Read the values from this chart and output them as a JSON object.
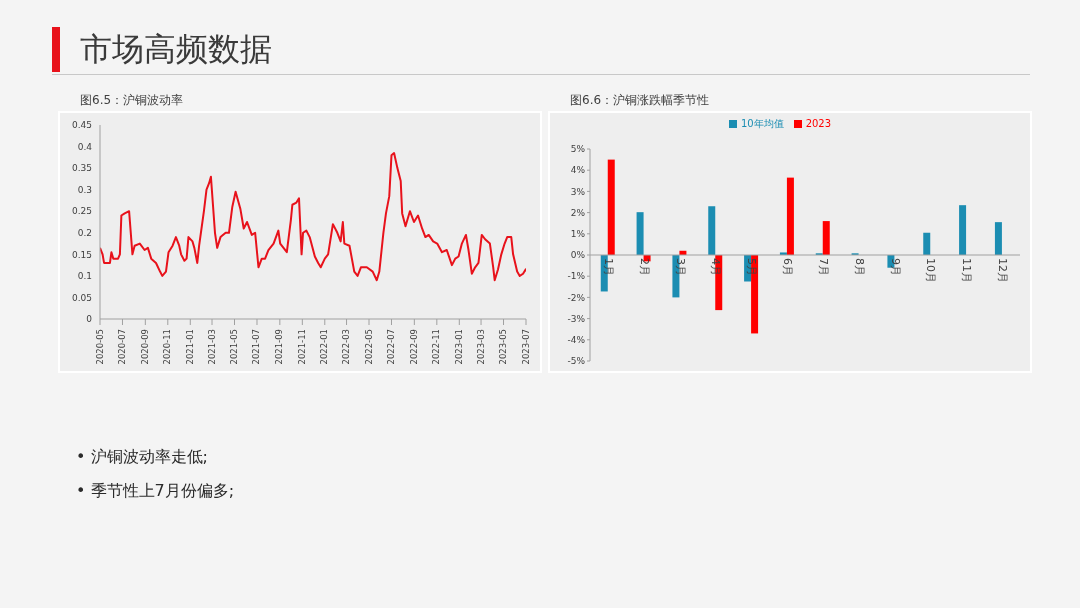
{
  "chart_data": [
    {
      "type": "other",
      "title": "市场高频数据",
      "annotations": [
        "• 沪铜波动率走低;",
        "• 季节性上7月份偏多;"
      ]
    },
    {
      "type": "line",
      "title": "图6.5：沪铜波动率",
      "xlim": [
        "2020-05",
        "2023-07"
      ],
      "xticks": [
        "2020-05",
        "2020-07",
        "2020-09",
        "2020-11",
        "2021-01",
        "2021-03",
        "2021-05",
        "2021-07",
        "2021-09",
        "2021-11",
        "2022-01",
        "2022-03",
        "2022-05",
        "2022-07",
        "2022-09",
        "2022-11",
        "2023-01",
        "2023-03",
        "2023-05",
        "2023-07"
      ],
      "ylim": [
        0,
        0.45
      ],
      "yticks": [
        0,
        0.05,
        0.1,
        0.15,
        0.2,
        0.25,
        0.3,
        0.35,
        0.4,
        0.45
      ],
      "grid": false,
      "legend": false,
      "series": [
        {
          "color": "#e8121b",
          "x": [
            "2020-05-01",
            "2020-05-08",
            "2020-05-12",
            "2020-05-28",
            "2020-06-01",
            "2020-06-06",
            "2020-06-19",
            "2020-06-24",
            "2020-06-28",
            "2020-07-07",
            "2020-07-19",
            "2020-07-28",
            "2020-08-03",
            "2020-08-17",
            "2020-08-30",
            "2020-09-08",
            "2020-09-17",
            "2020-09-30",
            "2020-10-11",
            "2020-10-17",
            "2020-10-27",
            "2020-11-03",
            "2020-11-14",
            "2020-11-23",
            "2020-12-02",
            "2020-12-07",
            "2020-12-16",
            "2020-12-22",
            "2020-12-27",
            "2021-01-07",
            "2021-01-12",
            "2021-01-20",
            "2021-01-25",
            "2021-02-07",
            "2021-02-14",
            "2021-02-21",
            "2021-02-26",
            "2021-03-09",
            "2021-03-15",
            "2021-03-24",
            "2021-04-07",
            "2021-04-16",
            "2021-04-25",
            "2021-05-04",
            "2021-05-17",
            "2021-05-26",
            "2021-06-04",
            "2021-06-17",
            "2021-06-26",
            "2021-07-05",
            "2021-07-14",
            "2021-07-23",
            "2021-08-01",
            "2021-08-15",
            "2021-08-28",
            "2021-09-02",
            "2021-09-20",
            "2021-10-01",
            "2021-10-05",
            "2021-10-16",
            "2021-10-23",
            "2021-10-30",
            "2021-11-03",
            "2021-11-12",
            "2021-11-21",
            "2021-12-05",
            "2021-12-14",
            "2021-12-21",
            "2022-01-01",
            "2022-01-10",
            "2022-01-23",
            "2022-02-04",
            "2022-02-13",
            "2022-02-19",
            "2022-02-23",
            "2022-03-09",
            "2022-03-22",
            "2022-03-31",
            "2022-04-09",
            "2022-04-25",
            "2022-05-11",
            "2022-05-22",
            "2022-05-29",
            "2022-06-09",
            "2022-06-16",
            "2022-06-25",
            "2022-07-01",
            "2022-07-08",
            "2022-07-17",
            "2022-07-26",
            "2022-07-30",
            "2022-08-08",
            "2022-08-20",
            "2022-08-31",
            "2022-09-11",
            "2022-09-22",
            "2022-10-01",
            "2022-10-10",
            "2022-10-22",
            "2022-11-02",
            "2022-11-15",
            "2022-11-28",
            "2022-12-12",
            "2022-12-21",
            "2022-12-30",
            "2023-01-08",
            "2023-01-19",
            "2023-01-26",
            "2023-02-04",
            "2023-02-13",
            "2023-02-22",
            "2023-03-03",
            "2023-03-12",
            "2023-03-25",
            "2023-04-03",
            "2023-04-07",
            "2023-04-16",
            "2023-04-25",
            "2023-05-04",
            "2023-05-11",
            "2023-05-22",
            "2023-05-27",
            "2023-06-07",
            "2023-06-14",
            "2023-06-23",
            "2023-06-30",
            "2023-07-01"
          ],
          "values": [
            0.165,
            0.15,
            0.13,
            0.13,
            0.155,
            0.14,
            0.14,
            0.15,
            0.24,
            0.245,
            0.25,
            0.15,
            0.17,
            0.175,
            0.16,
            0.165,
            0.14,
            0.13,
            0.11,
            0.1,
            0.11,
            0.155,
            0.17,
            0.19,
            0.17,
            0.15,
            0.135,
            0.14,
            0.19,
            0.18,
            0.165,
            0.13,
            0.17,
            0.25,
            0.3,
            0.315,
            0.33,
            0.2,
            0.165,
            0.19,
            0.2,
            0.2,
            0.26,
            0.295,
            0.255,
            0.21,
            0.225,
            0.195,
            0.2,
            0.12,
            0.14,
            0.14,
            0.16,
            0.175,
            0.205,
            0.175,
            0.155,
            0.23,
            0.265,
            0.27,
            0.28,
            0.15,
            0.2,
            0.205,
            0.19,
            0.145,
            0.13,
            0.12,
            0.14,
            0.15,
            0.22,
            0.2,
            0.18,
            0.225,
            0.175,
            0.17,
            0.11,
            0.1,
            0.12,
            0.12,
            0.11,
            0.09,
            0.11,
            0.2,
            0.245,
            0.285,
            0.38,
            0.385,
            0.35,
            0.32,
            0.245,
            0.215,
            0.25,
            0.225,
            0.24,
            0.21,
            0.19,
            0.195,
            0.18,
            0.175,
            0.155,
            0.16,
            0.125,
            0.14,
            0.145,
            0.175,
            0.195,
            0.16,
            0.105,
            0.12,
            0.13,
            0.195,
            0.185,
            0.175,
            0.12,
            0.09,
            0.115,
            0.15,
            0.175,
            0.19,
            0.19,
            0.15,
            0.11,
            0.1,
            0.105,
            0.115,
            0.11
          ]
        }
      ]
    },
    {
      "type": "bar",
      "title": "图6.6：沪铜涨跌幅季节性",
      "categories": [
        "1月",
        "2月",
        "3月",
        "4月",
        "5月",
        "6月",
        "7月",
        "8月",
        "9月",
        "10月",
        "11月",
        "12月"
      ],
      "ylim": [
        -5,
        5
      ],
      "yticks": [
        {
          "value": -5,
          "label": "-5%"
        },
        {
          "value": -4,
          "label": "-4%"
        },
        {
          "value": -3,
          "label": "-3%"
        },
        {
          "value": -2,
          "label": "-2%"
        },
        {
          "value": -1,
          "label": "-1%"
        },
        {
          "value": 0,
          "label": "0%"
        },
        {
          "value": 1,
          "label": "1%"
        },
        {
          "value": 2,
          "label": "2%"
        },
        {
          "value": 3,
          "label": "3%"
        },
        {
          "value": 4,
          "label": "4%"
        },
        {
          "value": 5,
          "label": "5%"
        }
      ],
      "grid": false,
      "legend": "top",
      "series": [
        {
          "name": "10年均值",
          "color": "#1b8db2",
          "values": [
            -1.72,
            2.02,
            -2.0,
            2.3,
            -1.25,
            0.12,
            0.08,
            0.08,
            -0.6,
            1.05,
            2.35,
            1.55
          ]
        },
        {
          "name": "2023",
          "color": "#ff0000",
          "values": [
            4.5,
            -0.3,
            0.2,
            -2.6,
            -3.7,
            3.65,
            1.6,
            null,
            null,
            null,
            null,
            null
          ]
        }
      ]
    }
  ]
}
